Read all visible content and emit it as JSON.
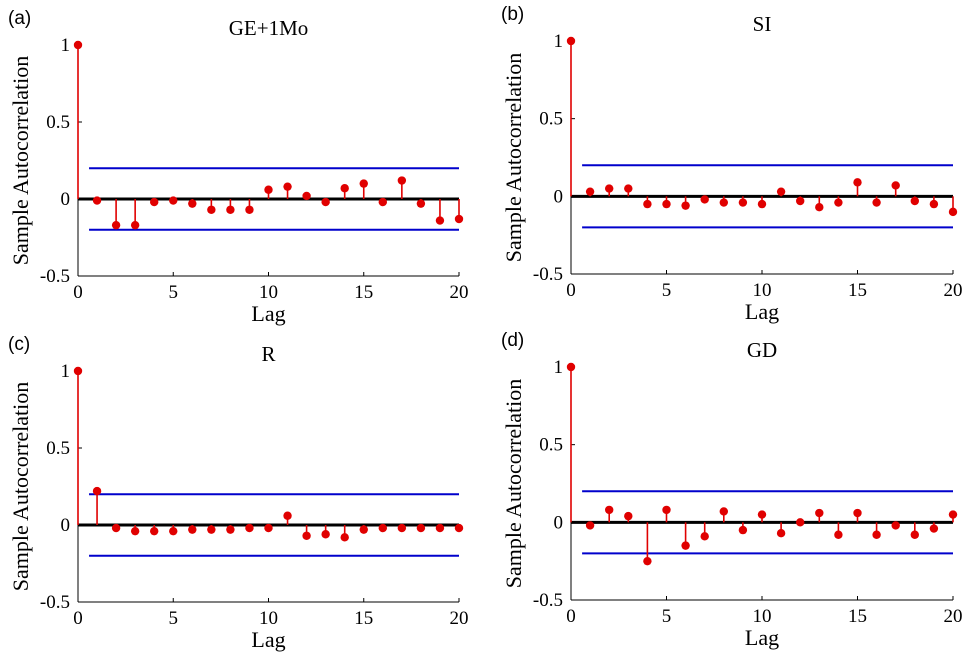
{
  "colors": {
    "stem": "#e00000",
    "bound": "#0000cc",
    "axis": "#000000",
    "zero": "#000000"
  },
  "chart_data": [
    {
      "panel": "(a)",
      "type": "scatter",
      "title": "GE+1Mo",
      "xlabel": "Lag",
      "ylabel": "Sample Autocorrelation",
      "xlim": [
        0,
        20
      ],
      "ylim": [
        -0.5,
        1
      ],
      "xticks": [
        "0",
        "5",
        "10",
        "15",
        "20"
      ],
      "yticks": [
        "-0.5",
        "0",
        "0.5",
        "1"
      ],
      "confidence_bounds": [
        0.2,
        -0.2
      ],
      "x": [
        0,
        1,
        2,
        3,
        4,
        5,
        6,
        7,
        8,
        9,
        10,
        11,
        12,
        13,
        14,
        15,
        16,
        17,
        18,
        19,
        20
      ],
      "values": [
        1,
        -0.01,
        -0.17,
        -0.17,
        -0.02,
        -0.01,
        -0.03,
        -0.07,
        -0.07,
        -0.07,
        0.06,
        0.08,
        0.02,
        -0.02,
        0.07,
        0.1,
        -0.02,
        0.12,
        -0.03,
        -0.14,
        -0.13
      ]
    },
    {
      "panel": "(b)",
      "type": "scatter",
      "title": "SI",
      "xlabel": "Lag",
      "ylabel": "Sample Autocorrelation",
      "xlim": [
        0,
        20
      ],
      "ylim": [
        -0.5,
        1
      ],
      "xticks": [
        "0",
        "5",
        "10",
        "15",
        "20"
      ],
      "yticks": [
        "-0.5",
        "0",
        "0.5",
        "1"
      ],
      "confidence_bounds": [
        0.2,
        -0.2
      ],
      "x": [
        0,
        1,
        2,
        3,
        4,
        5,
        6,
        7,
        8,
        9,
        10,
        11,
        12,
        13,
        14,
        15,
        16,
        17,
        18,
        19,
        20
      ],
      "values": [
        1,
        0.03,
        0.05,
        0.05,
        -0.05,
        -0.05,
        -0.06,
        -0.02,
        -0.04,
        -0.04,
        -0.05,
        0.03,
        -0.03,
        -0.07,
        -0.04,
        0.09,
        -0.04,
        0.07,
        -0.03,
        -0.05,
        -0.1
      ]
    },
    {
      "panel": "(c)",
      "type": "scatter",
      "title": "R",
      "xlabel": "Lag",
      "ylabel": "Sample Autocorrelation",
      "xlim": [
        0,
        20
      ],
      "ylim": [
        -0.5,
        1
      ],
      "xticks": [
        "0",
        "5",
        "10",
        "15",
        "20"
      ],
      "yticks": [
        "-0.5",
        "0",
        "0.5",
        "1"
      ],
      "confidence_bounds": [
        0.2,
        -0.2
      ],
      "x": [
        0,
        1,
        2,
        3,
        4,
        5,
        6,
        7,
        8,
        9,
        10,
        11,
        12,
        13,
        14,
        15,
        16,
        17,
        18,
        19,
        20
      ],
      "values": [
        1,
        0.22,
        -0.02,
        -0.04,
        -0.04,
        -0.04,
        -0.03,
        -0.03,
        -0.03,
        -0.02,
        -0.02,
        0.06,
        -0.07,
        -0.06,
        -0.08,
        -0.03,
        -0.02,
        -0.02,
        -0.02,
        -0.02,
        -0.02
      ]
    },
    {
      "panel": "(d)",
      "type": "scatter",
      "title": "GD",
      "xlabel": "Lag",
      "ylabel": "Sample Autocorrelation",
      "xlim": [
        0,
        20
      ],
      "ylim": [
        -0.5,
        1
      ],
      "xticks": [
        "0",
        "5",
        "10",
        "15",
        "20"
      ],
      "yticks": [
        "-0.5",
        "0",
        "0.5",
        "1"
      ],
      "confidence_bounds": [
        0.2,
        -0.2
      ],
      "x": [
        0,
        1,
        2,
        3,
        4,
        5,
        6,
        7,
        8,
        9,
        10,
        11,
        12,
        13,
        14,
        15,
        16,
        17,
        18,
        19,
        20
      ],
      "values": [
        1,
        -0.02,
        0.08,
        0.04,
        -0.25,
        0.08,
        -0.15,
        -0.09,
        0.07,
        -0.05,
        0.05,
        -0.07,
        0,
        0.06,
        -0.08,
        0.06,
        -0.08,
        -0.02,
        -0.08,
        -0.04,
        0.05
      ]
    }
  ]
}
